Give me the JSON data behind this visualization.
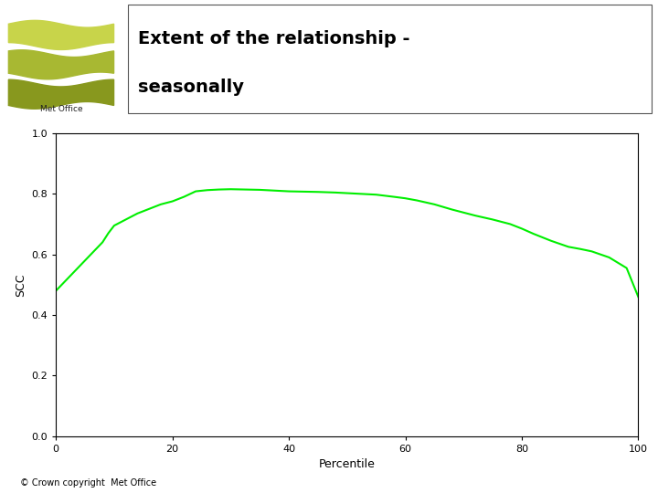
{
  "title_line1": "Extent of the relationship -",
  "title_line2": "seasonally",
  "xlabel": "Percentile",
  "ylabel": "SCC",
  "xlim": [
    0,
    100
  ],
  "ylim": [
    0.0,
    1.0
  ],
  "xticks": [
    0,
    20,
    40,
    60,
    80,
    100
  ],
  "yticks": [
    0.0,
    0.2,
    0.4,
    0.6,
    0.8,
    1.0
  ],
  "line_color": "#00ee00",
  "line_width": 1.5,
  "copyright_text": "© Crown copyright  Met Office",
  "bg_color": "#ffffff",
  "x_data": [
    0,
    1,
    2,
    3,
    4,
    5,
    6,
    7,
    8,
    9,
    10,
    12,
    14,
    16,
    18,
    20,
    22,
    24,
    26,
    28,
    30,
    35,
    40,
    45,
    48,
    50,
    52,
    55,
    58,
    60,
    62,
    65,
    68,
    70,
    72,
    75,
    78,
    80,
    82,
    85,
    88,
    90,
    92,
    95,
    98,
    100
  ],
  "y_data": [
    0.48,
    0.5,
    0.52,
    0.54,
    0.56,
    0.58,
    0.6,
    0.62,
    0.64,
    0.67,
    0.695,
    0.715,
    0.735,
    0.75,
    0.765,
    0.775,
    0.79,
    0.808,
    0.812,
    0.814,
    0.815,
    0.813,
    0.808,
    0.806,
    0.804,
    0.802,
    0.8,
    0.797,
    0.79,
    0.785,
    0.778,
    0.765,
    0.748,
    0.738,
    0.728,
    0.715,
    0.7,
    0.685,
    0.668,
    0.645,
    0.625,
    0.618,
    0.61,
    0.59,
    0.555,
    0.46
  ],
  "wave_colors": [
    "#c8d44a",
    "#a8b832",
    "#88981e"
  ],
  "header_box_edge": "#555555",
  "title_fontsize": 14,
  "tick_fontsize": 8,
  "axis_label_fontsize": 9,
  "copyright_fontsize": 7
}
